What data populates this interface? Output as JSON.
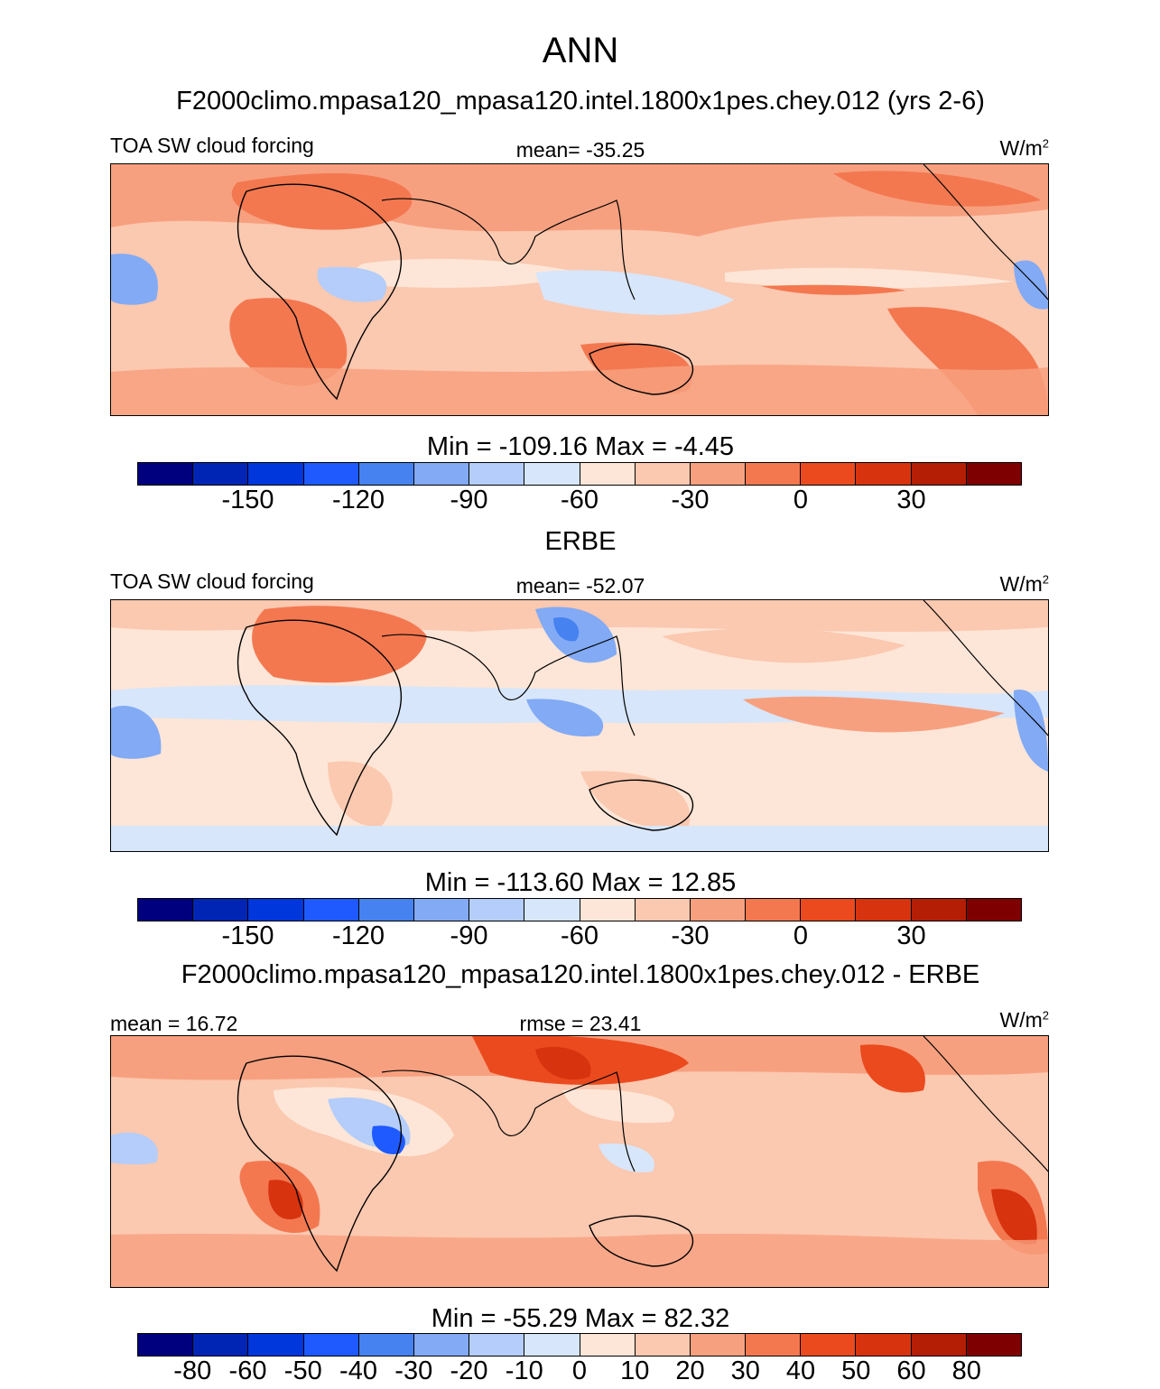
{
  "figure": {
    "title": "ANN",
    "model_title": "F2000climo.mpasa120_mpasa120.intel.1800x1pes.chey.012 (yrs 2-6)",
    "obs_title": "ERBE",
    "diff_title": "F2000climo.mpasa120_mpasa120.intel.1800x1pes.chey.012 - ERBE"
  },
  "colors": {
    "palette": [
      "#00007f",
      "#0025b4",
      "#0037dc",
      "#1e5aff",
      "#4682f0",
      "#82aaf5",
      "#b4cdfa",
      "#d7e6fa",
      "#fde6d7",
      "#fbc8b0",
      "#f7a07f",
      "#f37850",
      "#eb4a1e",
      "#d7330e",
      "#b41e05",
      "#7f0000"
    ],
    "land_outline": "#000000"
  },
  "chart_data": [
    {
      "type": "heatmap",
      "panel": "model",
      "variable": "TOA SW cloud forcing",
      "units_base": "W/m",
      "units_exp": "2",
      "mean_label": "mean= -35.25",
      "minmax_label": "Min = -109.16 Max =  -4.45",
      "min": -109.16,
      "max": -4.45,
      "mean": -35.25,
      "ticks": [
        "-150",
        "-120",
        "-90",
        "-60",
        "-30",
        "0",
        "30"
      ],
      "tick_boundary_index": [
        2,
        4,
        6,
        8,
        10,
        12,
        14
      ],
      "levels": [
        -175,
        -165,
        -150,
        -135,
        -120,
        -105,
        -90,
        -75,
        -60,
        -45,
        -30,
        -15,
        0,
        15,
        30,
        45
      ]
    },
    {
      "type": "heatmap",
      "panel": "obs",
      "variable": "TOA SW cloud forcing",
      "units_base": "W/m",
      "units_exp": "2",
      "mean_label": "mean= -52.07",
      "minmax_label": "Min = -113.60 Max =  12.85",
      "min": -113.6,
      "max": 12.85,
      "mean": -52.07,
      "ticks": [
        "-150",
        "-120",
        "-90",
        "-60",
        "-30",
        "0",
        "30"
      ],
      "tick_boundary_index": [
        2,
        4,
        6,
        8,
        10,
        12,
        14
      ],
      "levels": [
        -175,
        -165,
        -150,
        -135,
        -120,
        -105,
        -90,
        -75,
        -60,
        -45,
        -30,
        -15,
        0,
        15,
        30,
        45
      ]
    },
    {
      "type": "heatmap",
      "panel": "difference",
      "units_base": "W/m",
      "units_exp": "2",
      "mean_label": "mean =  16.72",
      "rmse_label": "rmse =  23.41",
      "minmax_label": "Min = -55.29 Max =  82.32",
      "min": -55.29,
      "max": 82.32,
      "mean": 16.72,
      "rmse": 23.41,
      "ticks": [
        "-80",
        "-60",
        "-50",
        "-40",
        "-30",
        "-20",
        "-10",
        "0",
        "10",
        "20",
        "30",
        "40",
        "50",
        "60",
        "80"
      ],
      "tick_boundary_index": [
        1,
        2,
        3,
        4,
        5,
        6,
        7,
        8,
        9,
        10,
        11,
        12,
        13,
        14,
        15
      ],
      "levels": [
        -100,
        -80,
        -60,
        -50,
        -40,
        -30,
        -20,
        -10,
        0,
        10,
        20,
        30,
        40,
        50,
        60,
        80
      ]
    }
  ]
}
